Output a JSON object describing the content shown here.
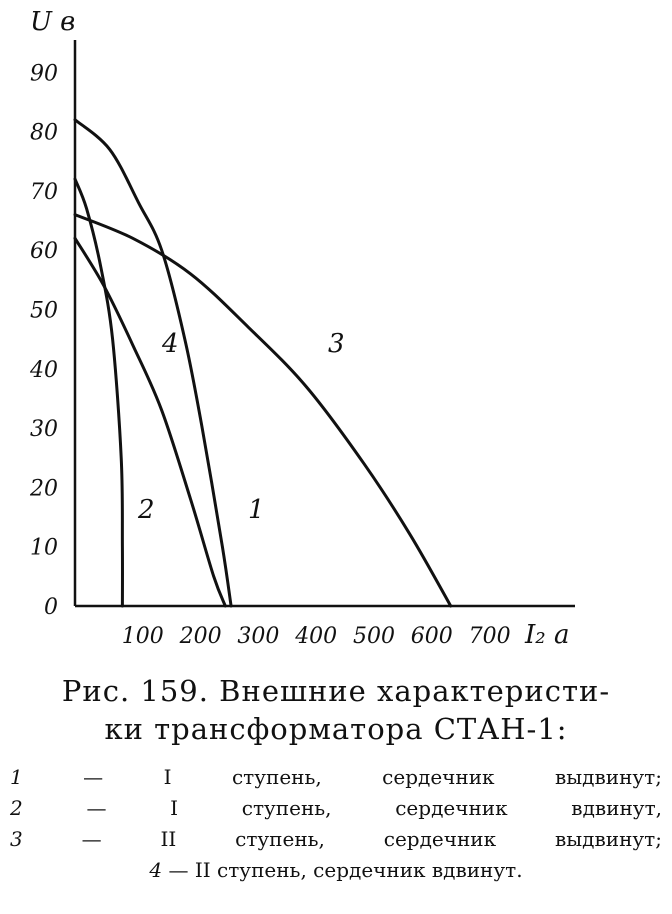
{
  "chart_data": {
    "type": "line",
    "ylabel": "U в",
    "xlabel": "I₂ а",
    "xlim": [
      0,
      860
    ],
    "ylim": [
      0,
      100
    ],
    "x_ticks": [
      "100",
      "200",
      "300",
      "400",
      "500",
      "600",
      "700"
    ],
    "y_ticks": [
      "0",
      "10",
      "20",
      "30",
      "40",
      "50",
      "60",
      "70",
      "80",
      "90"
    ],
    "grid": false,
    "series": [
      {
        "name": "1",
        "points": [
          [
            0,
            82
          ],
          [
            60,
            77
          ],
          [
            110,
            68
          ],
          [
            150,
            60
          ],
          [
            190,
            45
          ],
          [
            220,
            30
          ],
          [
            255,
            10
          ],
          [
            270,
            0
          ]
        ]
      },
      {
        "name": "2",
        "points": [
          [
            0,
            72
          ],
          [
            20,
            67
          ],
          [
            45,
            57
          ],
          [
            65,
            45
          ],
          [
            80,
            25
          ],
          [
            82,
            10
          ],
          [
            82,
            0
          ]
        ]
      },
      {
        "name": "3",
        "points": [
          [
            0,
            66
          ],
          [
            100,
            62
          ],
          [
            200,
            56
          ],
          [
            300,
            47
          ],
          [
            400,
            37
          ],
          [
            500,
            24
          ],
          [
            580,
            12
          ],
          [
            650,
            0
          ]
        ]
      },
      {
        "name": "4",
        "points": [
          [
            0,
            62
          ],
          [
            50,
            54
          ],
          [
            100,
            44
          ],
          [
            150,
            33
          ],
          [
            200,
            18
          ],
          [
            240,
            5
          ],
          [
            260,
            0
          ]
        ]
      }
    ]
  },
  "caption": {
    "line1": "Рис. 159. Внешние характеристи-",
    "line2": "ки трансформатора СТАН-1:"
  },
  "legend": [
    {
      "num": "1",
      "text": "— I ступень, сердечник выдвинут;"
    },
    {
      "num": "2",
      "text": "— I ступень, сердечник вдвинут,"
    },
    {
      "num": "3",
      "text": "— II ступень, сердечник выдвинут;"
    },
    {
      "num": "4",
      "text": "— II ступень, сердечник вдвинут."
    }
  ]
}
